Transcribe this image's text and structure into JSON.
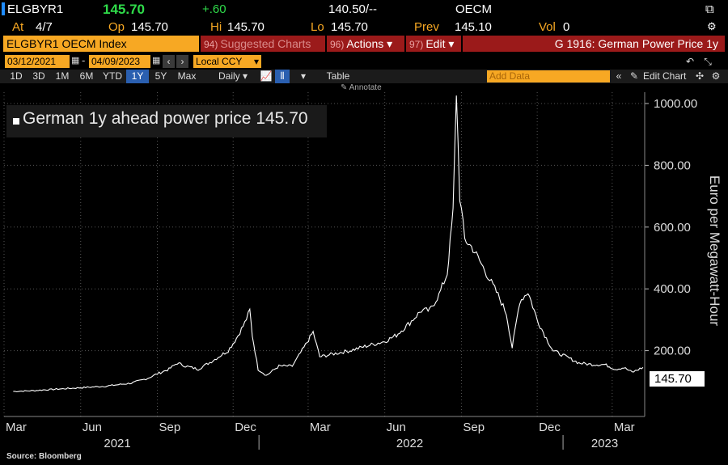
{
  "header": {
    "ticker": "ELGBYR1",
    "last": "145.70",
    "change": "+.60",
    "bid_ask": "140.50/--",
    "exchange": "OECM",
    "at_label": "At",
    "at_value": "4/7",
    "op_label": "Op",
    "op_value": "145.70",
    "hi_label": "Hi",
    "hi_value": "145.70",
    "lo_label": "Lo",
    "lo_value": "145.70",
    "prev_label": "Prev",
    "prev_value": "145.10",
    "vol_label": "Vol",
    "vol_value": "0"
  },
  "toolbar": {
    "security": "ELGBYR1 OECM Index",
    "suggested_num": "94)",
    "suggested": "Suggested Charts",
    "actions_num": "96)",
    "actions": "Actions ▾",
    "edit_num": "97)",
    "edit": "Edit ▾",
    "chart_title": "G 1916: German Power Price 1y"
  },
  "range": {
    "start": "03/12/2021",
    "end": "04/09/2023",
    "currency": "Local CCY"
  },
  "periods": [
    "1D",
    "3D",
    "1M",
    "6M",
    "YTD",
    "1Y",
    "5Y",
    "Max"
  ],
  "selected_period": "1Y",
  "frequency": "Daily ▾",
  "table_label": "Table",
  "add_data_placeholder": "Add Data",
  "edit_chart_label": "Edit Chart",
  "annotate_label": "Annotate",
  "legend_label": "German 1y ahead power price 145.70",
  "source": "Source: Bloomberg",
  "colors": {
    "amber": "#f7a823",
    "red": "#9b1a1a",
    "up": "#2fdc4a",
    "line": "#ffffff"
  },
  "chart_data": {
    "type": "line",
    "title": "G 1916: German Power Price 1y",
    "ylabel": "Euro per Megawatt-Hour",
    "ylim": [
      0,
      1050
    ],
    "yticks": [
      "200.00",
      "400.00",
      "600.00",
      "800.00",
      "1000.00"
    ],
    "last_value_label": "145.70",
    "xtick_labels": [
      "Mar",
      "Jun",
      "Sep",
      "Dec",
      "Mar",
      "Jun",
      "Sep",
      "Dec",
      "Mar"
    ],
    "year_labels": [
      "2021",
      "2022",
      "2023"
    ],
    "series": [
      {
        "name": "German 1y ahead power price",
        "x": [
          "2021-03-12",
          "2021-04-01",
          "2021-05-01",
          "2021-06-01",
          "2021-07-01",
          "2021-08-01",
          "2021-08-20",
          "2021-09-01",
          "2021-09-15",
          "2021-09-25",
          "2021-10-05",
          "2021-10-20",
          "2021-11-05",
          "2021-11-25",
          "2021-12-05",
          "2021-12-15",
          "2021-12-21",
          "2021-12-24",
          "2021-12-31",
          "2022-01-10",
          "2022-01-25",
          "2022-02-10",
          "2022-02-24",
          "2022-03-07",
          "2022-03-15",
          "2022-04-01",
          "2022-04-20",
          "2022-05-10",
          "2022-06-01",
          "2022-06-15",
          "2022-07-01",
          "2022-07-15",
          "2022-07-25",
          "2022-08-05",
          "2022-08-15",
          "2022-08-22",
          "2022-08-26",
          "2022-08-30",
          "2022-09-05",
          "2022-09-15",
          "2022-09-25",
          "2022-10-05",
          "2022-10-15",
          "2022-10-25",
          "2022-11-01",
          "2022-11-10",
          "2022-11-20",
          "2022-12-01",
          "2022-12-10",
          "2022-12-20",
          "2023-01-05",
          "2023-01-20",
          "2023-02-05",
          "2023-02-20",
          "2023-03-05",
          "2023-03-15",
          "2023-03-25",
          "2023-04-07"
        ],
        "values": [
          68,
          70,
          75,
          80,
          85,
          95,
          110,
          125,
          140,
          160,
          150,
          140,
          165,
          200,
          240,
          290,
          330,
          250,
          140,
          120,
          150,
          150,
          210,
          260,
          180,
          190,
          200,
          215,
          230,
          250,
          290,
          330,
          330,
          380,
          450,
          650,
          1040,
          700,
          560,
          530,
          480,
          430,
          380,
          320,
          210,
          360,
          390,
          300,
          250,
          200,
          180,
          160,
          155,
          155,
          140,
          145,
          130,
          145.7
        ]
      }
    ]
  }
}
